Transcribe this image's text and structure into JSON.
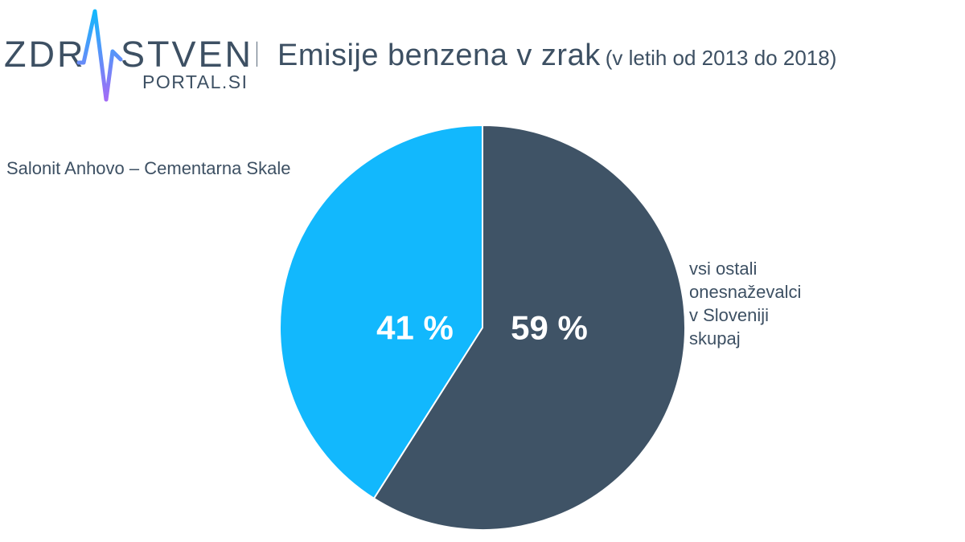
{
  "brand": {
    "logo_left": "ZDR",
    "logo_right": "STVENI",
    "logo_sub": "PORTAL.SI"
  },
  "title": {
    "main": "Emisije benzena v zrak",
    "sub": "(v letih od 2013 do 2018)"
  },
  "chart_data": {
    "type": "pie",
    "title": "Emisije benzena v zrak (v letih od 2013 do 2018)",
    "slices": [
      {
        "name": "vsi ostali onesnaževalci v Sloveniji skupaj",
        "label_lines": [
          "vsi ostali",
          "onesnaževalci",
          "v Sloveniji",
          "skupaj"
        ],
        "value": 59,
        "display": "59 %",
        "color": "#3f5366"
      },
      {
        "name": "Salonit Anhovo – Cementarna Skale",
        "label_lines": [
          "Salonit Anhovo – Cementarna Skale"
        ],
        "value": 41,
        "display": "41 %",
        "color": "#12b8fd"
      }
    ]
  },
  "colors": {
    "text": "#3d5063",
    "pulse_top": "#12b8fd",
    "pulse_bottom": "#a36cf5"
  }
}
